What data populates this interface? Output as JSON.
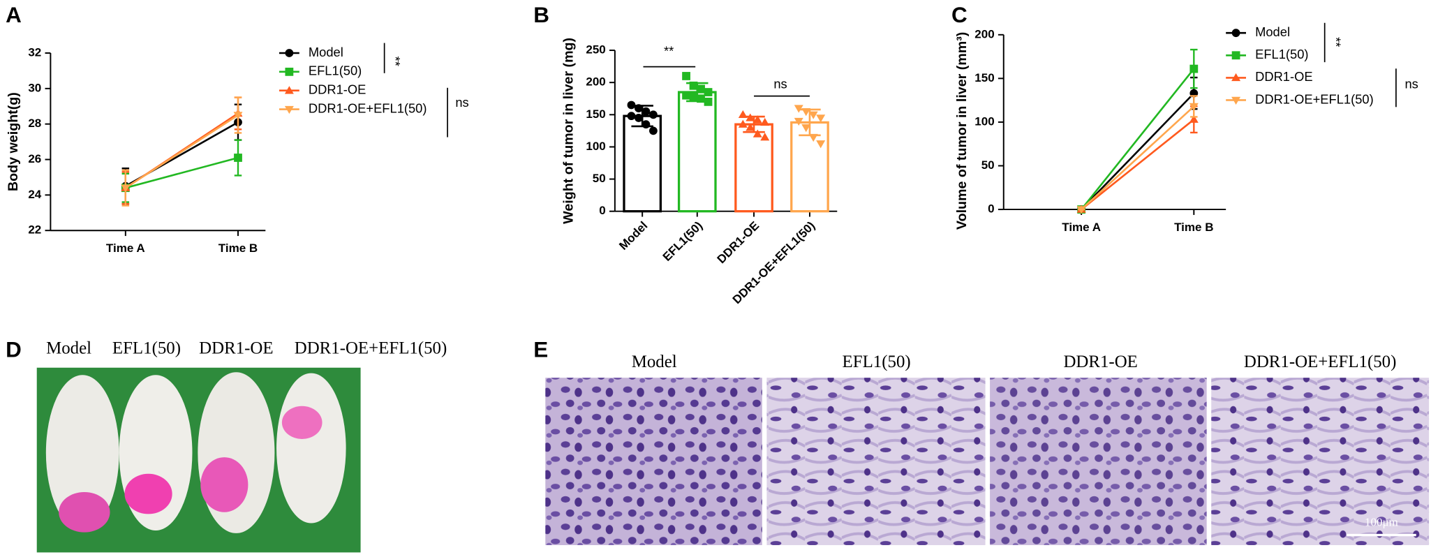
{
  "panel_labels": [
    "A",
    "B",
    "C",
    "D",
    "E"
  ],
  "chart_data": [
    {
      "type": "line",
      "ylabel": "Body weight(g)",
      "categories": [
        "Time A",
        "Time B"
      ],
      "ylim": [
        22,
        32
      ],
      "yticks": [
        22,
        24,
        26,
        28,
        30,
        32
      ],
      "series": [
        {
          "name": "Model",
          "color": "#000000",
          "marker": "circle",
          "values": [
            24.5,
            28.1
          ],
          "errors": [
            1.0,
            1.0
          ]
        },
        {
          "name": "EFL1(50)",
          "color": "#22b822",
          "marker": "square",
          "values": [
            24.4,
            26.1
          ],
          "errors": [
            0.8,
            1.0
          ]
        },
        {
          "name": "DDR1-OE",
          "color": "#ff5a1e",
          "marker": "triangle-up",
          "values": [
            24.4,
            28.6
          ],
          "errors": [
            0.9,
            0.9
          ]
        },
        {
          "name": "DDR1-OE+EFL1(50)",
          "color": "#ffa64d",
          "marker": "triangle-down",
          "values": [
            24.4,
            28.5
          ],
          "errors": [
            1.0,
            1.0
          ]
        }
      ],
      "annotations": [
        "**",
        "ns"
      ]
    },
    {
      "type": "bar",
      "ylabel": "Weight of tumor in liver (mg)",
      "categories": [
        "Model",
        "EFL1(50)",
        "DDR1-OE",
        "DDR1-OE+EFL1(50)"
      ],
      "ylim": [
        0,
        250
      ],
      "yticks": [
        0,
        50,
        100,
        150,
        200,
        250
      ],
      "values": [
        148,
        185,
        135,
        138
      ],
      "errors": [
        16,
        14,
        12,
        20
      ],
      "colors": [
        "#000000",
        "#22b822",
        "#ff5a1e",
        "#ffa64d"
      ],
      "markers": [
        "circle",
        "square",
        "triangle-up",
        "triangle-down"
      ],
      "points": [
        [
          165,
          160,
          155,
          150,
          148,
          145,
          135,
          125
        ],
        [
          210,
          195,
          190,
          185,
          180,
          178,
          175,
          170
        ],
        [
          150,
          145,
          142,
          138,
          135,
          130,
          120,
          115
        ],
        [
          160,
          155,
          150,
          145,
          140,
          130,
          115,
          105
        ]
      ],
      "annotations": [
        "**",
        "ns"
      ]
    },
    {
      "type": "line",
      "ylabel": "Volume of tumor in liver (mm³)",
      "categories": [
        "Time A",
        "Time B"
      ],
      "ylim": [
        0,
        200
      ],
      "yticks": [
        0,
        50,
        100,
        150,
        200
      ],
      "series": [
        {
          "name": "Model",
          "color": "#000000",
          "marker": "circle",
          "values": [
            0,
            133
          ],
          "errors": [
            0,
            18
          ]
        },
        {
          "name": "EFL1(50)",
          "color": "#22b822",
          "marker": "square",
          "values": [
            0,
            161
          ],
          "errors": [
            0,
            22
          ]
        },
        {
          "name": "DDR1-OE",
          "color": "#ff5a1e",
          "marker": "triangle-up",
          "values": [
            0,
            103
          ],
          "errors": [
            0,
            15
          ]
        },
        {
          "name": "DDR1-OE+EFL1(50)",
          "color": "#ffa64d",
          "marker": "triangle-down",
          "values": [
            0,
            118
          ],
          "errors": [
            0,
            12
          ]
        }
      ],
      "annotations": [
        "**",
        "ns"
      ]
    }
  ],
  "photo": {
    "labels": [
      "Model",
      "EFL1(50)",
      "DDR1-OE",
      "DDR1-OE+EFL1(50)"
    ]
  },
  "histology": {
    "labels": [
      "Model",
      "EFL1(50)",
      "DDR1-OE",
      "DDR1-OE+EFL1(50)"
    ],
    "scale_bar": "100μm"
  }
}
